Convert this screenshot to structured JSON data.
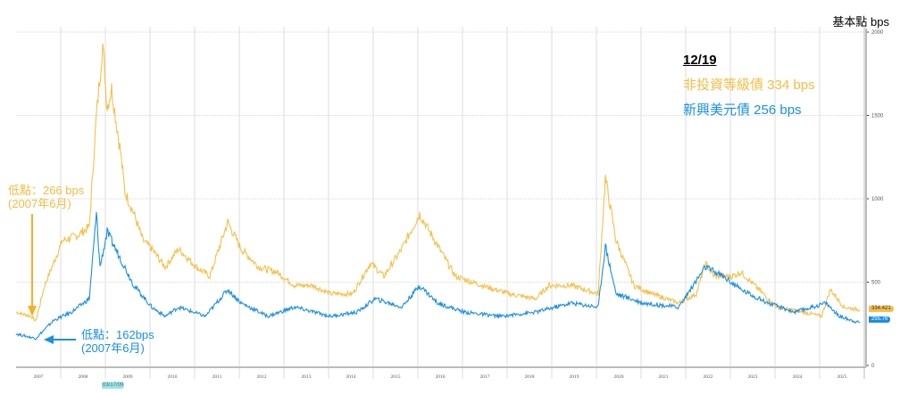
{
  "unit_label": "基本點 bps",
  "legend": {
    "date": "12/19",
    "hy_label": "非投資等級債 334 bps",
    "em_label": "新興美元債 256 bps"
  },
  "annotations": {
    "hy_low_line1": "低點：266 bps",
    "hy_low_line2": "(2007年6月)",
    "em_low_line1": "低點：162bps",
    "em_low_line2": "(2007年6月)"
  },
  "end_tags": {
    "hy": "334.421",
    "em": "255.76"
  },
  "x_highlight_label": "03/17/09",
  "colors": {
    "hy": "#f5c04a",
    "em": "#1a8fe3",
    "grid": "#dddddd"
  },
  "chart_data": {
    "type": "line",
    "title": "",
    "ylabel": "基本點 bps",
    "ylim": [
      0,
      2000
    ],
    "yticks": [
      0,
      500,
      1000,
      1500,
      2000
    ],
    "xlim": [
      2007,
      2026
    ],
    "xticks": [
      "2007",
      "2008",
      "2009",
      "2010",
      "2011",
      "2012",
      "2013",
      "2014",
      "2015",
      "2016",
      "2017",
      "2018",
      "2019",
      "2020",
      "2021",
      "2022",
      "2023",
      "2024",
      "2025"
    ],
    "grid": true,
    "series": [
      {
        "name": "非投資等級債",
        "color": "#f5c04a",
        "points": [
          [
            2007.0,
            320
          ],
          [
            2007.34,
            295
          ],
          [
            2007.44,
            266
          ],
          [
            2007.64,
            480
          ],
          [
            2008.04,
            750
          ],
          [
            2008.34,
            775
          ],
          [
            2008.64,
            830
          ],
          [
            2008.8,
            1500
          ],
          [
            2008.94,
            1925
          ],
          [
            2009.04,
            1550
          ],
          [
            2009.14,
            1660
          ],
          [
            2009.34,
            1280
          ],
          [
            2009.44,
            1040
          ],
          [
            2009.64,
            910
          ],
          [
            2009.84,
            750
          ],
          [
            2010.04,
            700
          ],
          [
            2010.34,
            590
          ],
          [
            2010.64,
            700
          ],
          [
            2011.04,
            590
          ],
          [
            2011.34,
            535
          ],
          [
            2011.74,
            860
          ],
          [
            2012.04,
            700
          ],
          [
            2012.44,
            590
          ],
          [
            2012.84,
            560
          ],
          [
            2013.24,
            480
          ],
          [
            2013.64,
            480
          ],
          [
            2014.04,
            430
          ],
          [
            2014.54,
            430
          ],
          [
            2014.94,
            615
          ],
          [
            2015.24,
            535
          ],
          [
            2015.64,
            700
          ],
          [
            2016.04,
            910
          ],
          [
            2016.44,
            720
          ],
          [
            2016.84,
            535
          ],
          [
            2017.44,
            480
          ],
          [
            2018.04,
            430
          ],
          [
            2018.64,
            400
          ],
          [
            2018.94,
            480
          ],
          [
            2019.44,
            480
          ],
          [
            2020.04,
            430
          ],
          [
            2020.2,
            1125
          ],
          [
            2020.44,
            750
          ],
          [
            2020.84,
            480
          ],
          [
            2021.24,
            430
          ],
          [
            2021.84,
            375
          ],
          [
            2022.24,
            430
          ],
          [
            2022.44,
            615
          ],
          [
            2022.64,
            535
          ],
          [
            2023.04,
            535
          ],
          [
            2023.24,
            560
          ],
          [
            2023.64,
            455
          ],
          [
            2024.04,
            350
          ],
          [
            2024.64,
            320
          ],
          [
            2025.04,
            295
          ],
          [
            2025.24,
            455
          ],
          [
            2025.54,
            350
          ],
          [
            2025.9,
            334
          ]
        ]
      },
      {
        "name": "新興美元債",
        "color": "#1a8fe3",
        "points": [
          [
            2007.0,
            190
          ],
          [
            2007.44,
            162
          ],
          [
            2007.84,
            270
          ],
          [
            2008.24,
            320
          ],
          [
            2008.64,
            400
          ],
          [
            2008.8,
            910
          ],
          [
            2008.88,
            590
          ],
          [
            2009.04,
            800
          ],
          [
            2009.34,
            640
          ],
          [
            2009.64,
            480
          ],
          [
            2010.04,
            350
          ],
          [
            2010.34,
            295
          ],
          [
            2010.64,
            350
          ],
          [
            2011.24,
            295
          ],
          [
            2011.74,
            455
          ],
          [
            2012.04,
            375
          ],
          [
            2012.64,
            295
          ],
          [
            2013.24,
            350
          ],
          [
            2014.04,
            295
          ],
          [
            2014.64,
            320
          ],
          [
            2015.04,
            400
          ],
          [
            2015.64,
            350
          ],
          [
            2016.04,
            480
          ],
          [
            2016.44,
            375
          ],
          [
            2017.04,
            320
          ],
          [
            2017.84,
            295
          ],
          [
            2018.64,
            320
          ],
          [
            2019.44,
            375
          ],
          [
            2020.04,
            350
          ],
          [
            2020.2,
            720
          ],
          [
            2020.44,
            430
          ],
          [
            2021.04,
            375
          ],
          [
            2021.84,
            350
          ],
          [
            2022.44,
            590
          ],
          [
            2022.84,
            535
          ],
          [
            2023.24,
            455
          ],
          [
            2023.84,
            375
          ],
          [
            2024.44,
            320
          ],
          [
            2024.84,
            350
          ],
          [
            2025.14,
            375
          ],
          [
            2025.44,
            295
          ],
          [
            2025.9,
            256
          ]
        ]
      }
    ]
  }
}
